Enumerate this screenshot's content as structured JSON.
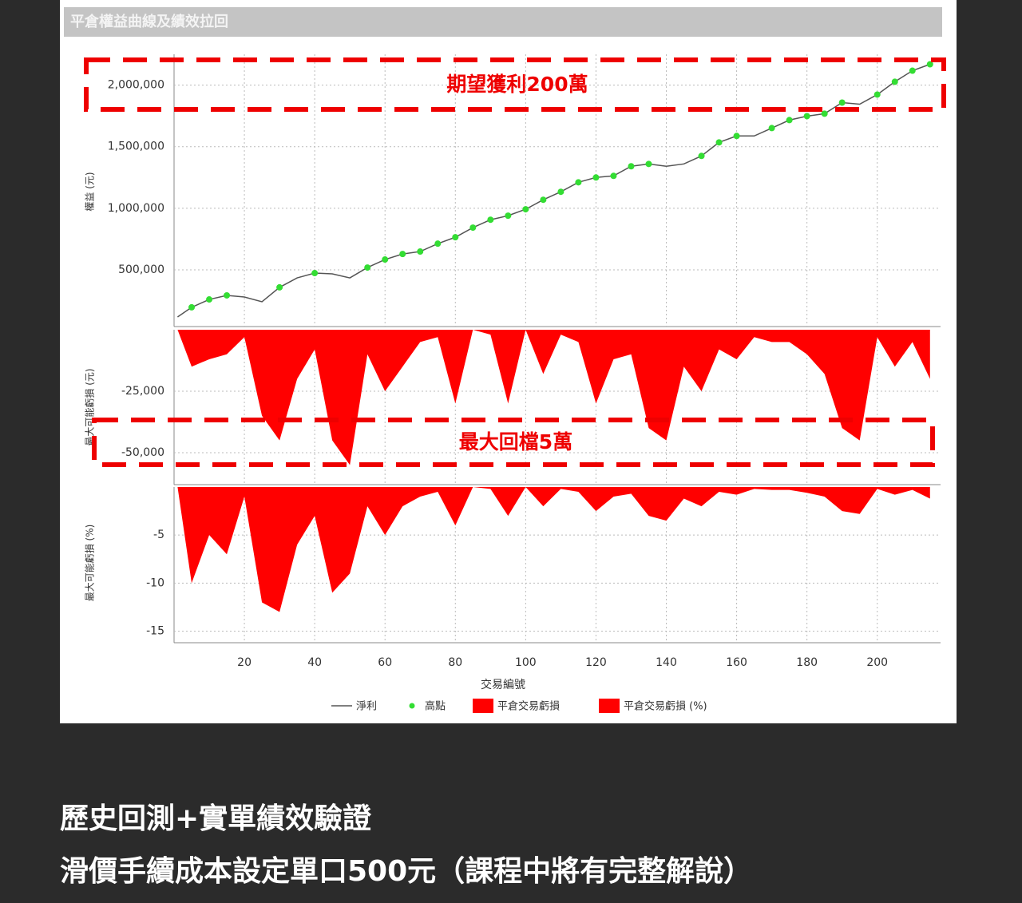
{
  "chart_data": [
    {
      "type": "line",
      "title": "平倉權益曲線及績效拉回",
      "ylabel": "權益 (元)",
      "annotation": "期望獲利200萬",
      "x": [
        1,
        5,
        10,
        15,
        20,
        25,
        30,
        35,
        40,
        45,
        50,
        55,
        60,
        65,
        70,
        75,
        80,
        85,
        90,
        95,
        100,
        105,
        110,
        115,
        120,
        125,
        130,
        135,
        140,
        145,
        150,
        155,
        160,
        165,
        170,
        175,
        180,
        185,
        190,
        195,
        200,
        205,
        210,
        215
      ],
      "series": [
        {
          "name": "淨利",
          "type": "line",
          "color": "#555555",
          "values": [
            118000,
            196000,
            260000,
            293000,
            280000,
            241000,
            358000,
            435000,
            474000,
            468000,
            435000,
            519000,
            584000,
            629000,
            649000,
            713000,
            765000,
            843000,
            907000,
            940000,
            992000,
            1069000,
            1134000,
            1211000,
            1250000,
            1263000,
            1341000,
            1360000,
            1341000,
            1360000,
            1425000,
            1535000,
            1587000,
            1587000,
            1651000,
            1716000,
            1748000,
            1768000,
            1858000,
            1845000,
            1923000,
            2027000,
            2117000,
            2169000
          ]
        },
        {
          "name": "高點",
          "type": "scatter",
          "color": "#33dd33",
          "x": [
            5,
            10,
            15,
            30,
            40,
            55,
            60,
            65,
            70,
            75,
            80,
            85,
            90,
            95,
            100,
            105,
            110,
            115,
            120,
            125,
            130,
            135,
            150,
            155,
            160,
            170,
            175,
            180,
            185,
            190,
            200,
            205,
            210,
            215
          ],
          "values": [
            196000,
            260000,
            293000,
            358000,
            474000,
            519000,
            584000,
            629000,
            649000,
            713000,
            765000,
            843000,
            907000,
            940000,
            992000,
            1069000,
            1134000,
            1211000,
            1250000,
            1263000,
            1341000,
            1360000,
            1425000,
            1535000,
            1587000,
            1651000,
            1716000,
            1748000,
            1768000,
            1858000,
            1923000,
            2027000,
            2117000,
            2169000
          ]
        }
      ],
      "xlim": [
        0,
        218
      ],
      "ylim": [
        40000,
        2250000
      ],
      "yticks": [
        {
          "value": 500000,
          "label": "500,000"
        },
        {
          "value": 1000000,
          "label": "1,000,000"
        },
        {
          "value": 1500000,
          "label": "1,500,000"
        },
        {
          "value": 2000000,
          "label": "2,000,000"
        }
      ]
    },
    {
      "type": "area",
      "ylabel": "最大可能虧損 (元)",
      "annotation": "最大回檔5萬",
      "x": [
        1,
        5,
        10,
        15,
        20,
        25,
        30,
        35,
        40,
        45,
        50,
        55,
        60,
        65,
        70,
        75,
        80,
        85,
        90,
        95,
        100,
        105,
        110,
        115,
        120,
        125,
        130,
        135,
        140,
        145,
        150,
        155,
        160,
        165,
        170,
        175,
        180,
        185,
        190,
        195,
        200,
        205,
        210,
        215
      ],
      "series": [
        {
          "name": "平倉交易虧損",
          "color": "#ff0000",
          "values": [
            0,
            -15000,
            -12000,
            -10000,
            -3000,
            -35000,
            -45000,
            -20000,
            -8000,
            -45000,
            -55000,
            -10000,
            -25000,
            -15000,
            -5000,
            -3000,
            -30000,
            0,
            -2000,
            -30000,
            0,
            -18000,
            -2000,
            -5000,
            -30000,
            -12000,
            -10000,
            -40000,
            -45000,
            -15000,
            -25000,
            -8000,
            -12000,
            -3000,
            -5000,
            -5000,
            -10000,
            -18000,
            -40000,
            -45000,
            -3000,
            -15000,
            -5000,
            -20000
          ]
        }
      ],
      "xlim": [
        0,
        218
      ],
      "ylim": [
        -63000,
        0
      ],
      "yticks": [
        {
          "value": -25000,
          "label": "-25,000"
        },
        {
          "value": -50000,
          "label": "-50,000"
        }
      ]
    },
    {
      "type": "area",
      "ylabel": "最大可能虧損 (%)",
      "xlabel": "交易編號",
      "x": [
        1,
        5,
        10,
        15,
        20,
        25,
        30,
        35,
        40,
        45,
        50,
        55,
        60,
        65,
        70,
        75,
        80,
        85,
        90,
        95,
        100,
        105,
        110,
        115,
        120,
        125,
        130,
        135,
        140,
        145,
        150,
        155,
        160,
        165,
        170,
        175,
        180,
        185,
        190,
        195,
        200,
        205,
        210,
        215
      ],
      "series": [
        {
          "name": "平倉交易虧損 (%)",
          "color": "#ff0000",
          "values": [
            0,
            -10,
            -5,
            -7,
            -1,
            -12,
            -13,
            -6,
            -3,
            -11,
            -9,
            -2,
            -5,
            -2,
            -1,
            -0.5,
            -4,
            0,
            -0.2,
            -3,
            0,
            -2,
            -0.2,
            -0.5,
            -2.5,
            -1,
            -0.7,
            -3,
            -3.5,
            -1.2,
            -2,
            -0.5,
            -0.8,
            -0.2,
            -0.3,
            -0.3,
            -0.6,
            -1,
            -2.5,
            -2.8,
            -0.2,
            -0.8,
            -0.3,
            -1.2
          ]
        }
      ],
      "xlim": [
        0,
        218
      ],
      "ylim": [
        -16.2,
        0
      ],
      "yticks": [
        -5,
        -10,
        -15
      ],
      "xticks": [
        20,
        40,
        60,
        80,
        100,
        120,
        140,
        160,
        180,
        200
      ]
    }
  ],
  "caption": [
    "歷史回測+實單績效驗證",
    "滑價手續成本設定單口500元（課程中將有完整解說）"
  ]
}
